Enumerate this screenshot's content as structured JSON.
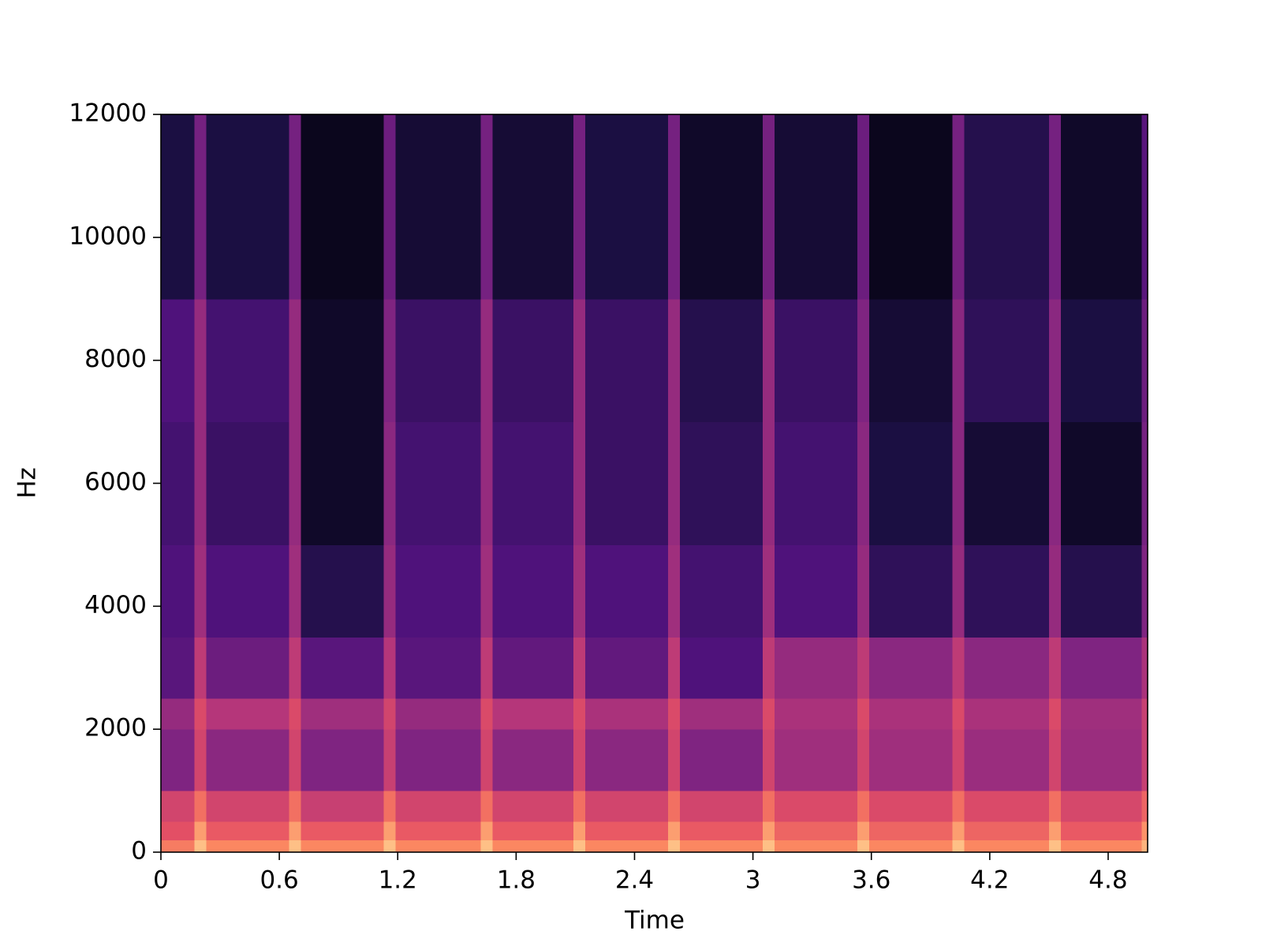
{
  "chart_data": {
    "type": "spectrogram",
    "x_label": "Time",
    "y_label": "Hz",
    "xlim": [
      0,
      5.0
    ],
    "ylim": [
      0,
      12000
    ],
    "xticks": [
      0,
      0.6,
      1.2,
      1.8,
      2.4,
      3,
      3.6,
      4.2,
      4.8
    ],
    "yticks": [
      0,
      2000,
      4000,
      6000,
      8000,
      10000,
      12000
    ],
    "colormap": "magma",
    "zlim": [
      -80,
      0
    ],
    "x_edges": [
      0,
      0.17,
      0.23,
      0.65,
      0.71,
      1.13,
      1.19,
      1.62,
      1.68,
      2.09,
      2.15,
      2.57,
      2.63,
      3.05,
      3.11,
      3.53,
      3.59,
      4.01,
      4.07,
      4.5,
      4.56,
      4.97,
      5.0
    ],
    "y_edges": [
      0,
      200,
      500,
      1000,
      2000,
      2500,
      3500,
      5000,
      7000,
      9000,
      12000
    ],
    "values": [
      [
        -22,
        -10,
        -20,
        -10,
        -20,
        -10,
        -20,
        -10,
        -20,
        -10,
        -20,
        -10,
        -20,
        -10,
        -20,
        -10,
        -20,
        -10,
        -20,
        -10,
        -20,
        -12
      ],
      [
        -30,
        -16,
        -28,
        -16,
        -28,
        -16,
        -28,
        -16,
        -28,
        -16,
        -28,
        -16,
        -28,
        -16,
        -26,
        -16,
        -26,
        -16,
        -26,
        -16,
        -28,
        -18
      ],
      [
        -34,
        -24,
        -34,
        -24,
        -36,
        -24,
        -34,
        -24,
        -34,
        -24,
        -34,
        -24,
        -34,
        -24,
        -32,
        -24,
        -32,
        -24,
        -32,
        -24,
        -33,
        -26
      ],
      [
        -50,
        -34,
        -48,
        -34,
        -50,
        -36,
        -50,
        -34,
        -48,
        -34,
        -48,
        -34,
        -50,
        -34,
        -44,
        -34,
        -44,
        -34,
        -45,
        -34,
        -45,
        -36
      ],
      [
        -46,
        -32,
        -40,
        -32,
        -44,
        -34,
        -46,
        -32,
        -40,
        -32,
        -42,
        -32,
        -44,
        -32,
        -42,
        -32,
        -42,
        -32,
        -42,
        -32,
        -44,
        -36
      ],
      [
        -58,
        -38,
        -54,
        -38,
        -58,
        -40,
        -58,
        -38,
        -56,
        -38,
        -56,
        -38,
        -60,
        -38,
        -46,
        -38,
        -48,
        -38,
        -48,
        -38,
        -50,
        -42
      ],
      [
        -60,
        -44,
        -60,
        -44,
        -68,
        -46,
        -60,
        -44,
        -60,
        -44,
        -60,
        -44,
        -62,
        -44,
        -60,
        -46,
        -66,
        -46,
        -66,
        -46,
        -68,
        -50
      ],
      [
        -62,
        -46,
        -64,
        -46,
        -74,
        -48,
        -62,
        -46,
        -62,
        -46,
        -64,
        -46,
        -66,
        -46,
        -62,
        -48,
        -70,
        -48,
        -72,
        -48,
        -74,
        -52
      ],
      [
        -60,
        -46,
        -62,
        -46,
        -74,
        -50,
        -64,
        -46,
        -64,
        -46,
        -64,
        -46,
        -68,
        -46,
        -64,
        -50,
        -72,
        -48,
        -66,
        -48,
        -70,
        -54
      ],
      [
        -70,
        -52,
        -70,
        -52,
        -76,
        -54,
        -72,
        -52,
        -72,
        -52,
        -70,
        -52,
        -74,
        -52,
        -72,
        -54,
        -76,
        -52,
        -68,
        -52,
        -74,
        -58
      ]
    ]
  }
}
